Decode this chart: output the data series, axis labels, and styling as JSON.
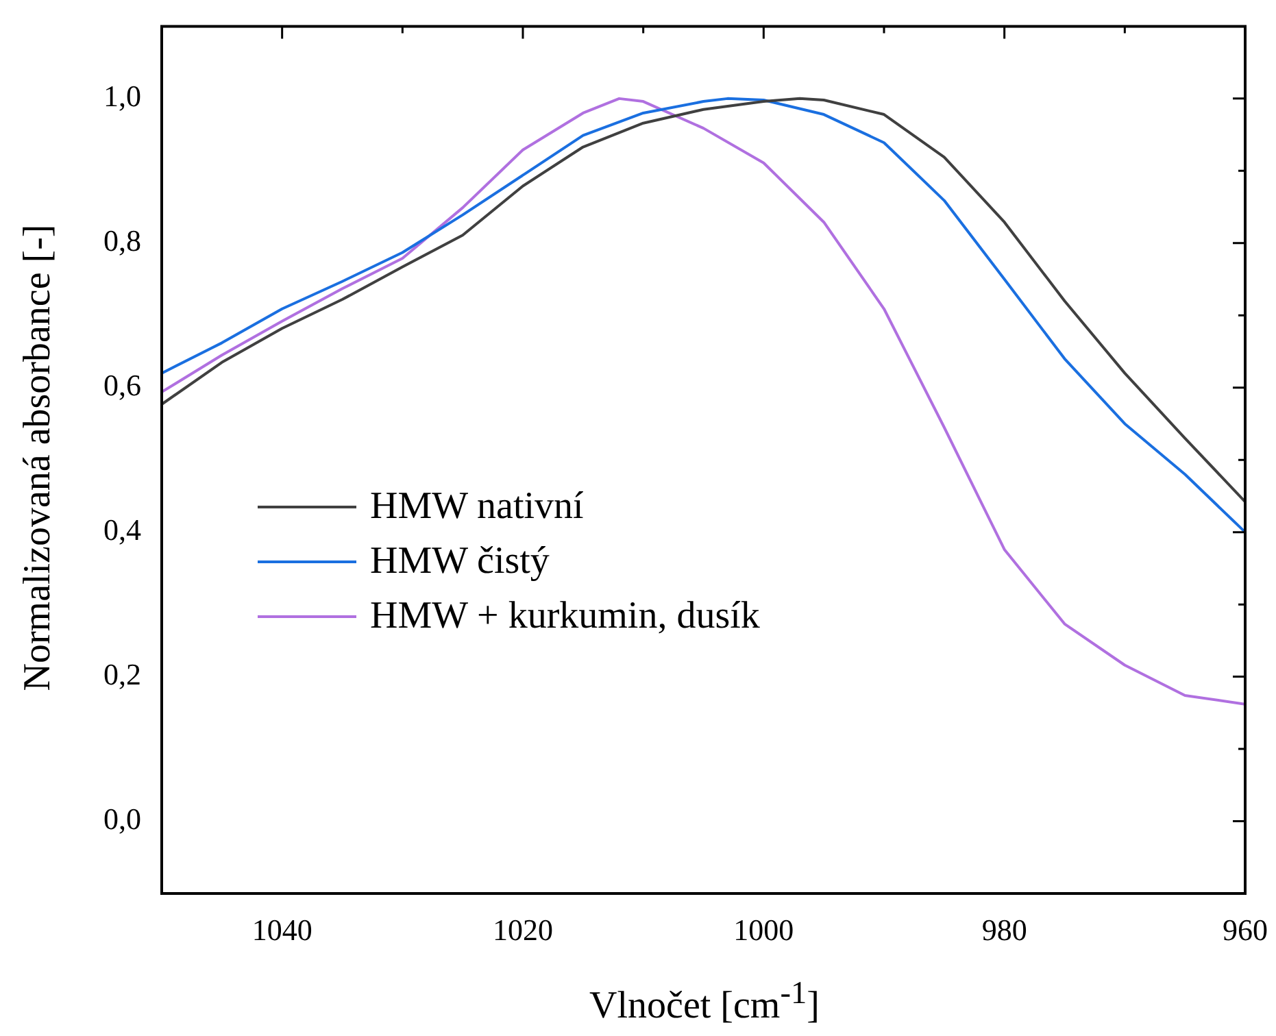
{
  "chart_data": {
    "type": "line",
    "xlabel": "Vlnočet [cm$^{-1}$]",
    "ylabel": "Normalizovaná absorbance [-]",
    "xlim": [
      1050,
      960
    ],
    "ylim": [
      -0.1,
      1.1
    ],
    "xticks": [
      {
        "value": 1050,
        "label": null
      },
      1040,
      {
        "value": 1030,
        "label": null
      },
      1020,
      {
        "value": 1010,
        "label": null
      },
      1000,
      {
        "value": 990,
        "label": null
      },
      980,
      {
        "value": 970,
        "label": null
      },
      960
    ],
    "yticks": [
      {
        "value": -0.1,
        "label": null
      },
      {
        "value": 0,
        "label": "0,0"
      },
      {
        "value": 0.1,
        "label": null
      },
      {
        "value": 0.2,
        "label": "0,2"
      },
      {
        "value": 0.3,
        "label": null
      },
      {
        "value": 0.4,
        "label": "0,4"
      },
      {
        "value": 0.5,
        "label": null
      },
      {
        "value": 0.6,
        "label": "0,6"
      },
      {
        "value": 0.7,
        "label": null
      },
      {
        "value": 0.8,
        "label": "0,8"
      },
      {
        "value": 0.9,
        "label": null
      },
      {
        "value": 1,
        "label": "1,0"
      },
      {
        "value": 1.1,
        "label": null
      }
    ],
    "x": [
      1050,
      1045,
      1040,
      1035,
      1030,
      1025,
      1020,
      1015,
      1010,
      1005,
      1000,
      997,
      995,
      990,
      985,
      980,
      975,
      970,
      965,
      960
    ],
    "series": [
      {
        "name": "HMW nativní",
        "color": "#404040",
        "values": [
          0.577,
          0.635,
          0.682,
          0.722,
          0.767,
          0.811,
          0.879,
          0.933,
          0.966,
          0.985,
          0.996,
          1.0,
          0.998,
          0.978,
          0.919,
          0.829,
          0.72,
          0.62,
          0.53,
          0.442
        ]
      },
      {
        "name": "HMW čistý",
        "color": "#1a6fe0",
        "x": [
          1050,
          1045,
          1040,
          1035,
          1030,
          1025,
          1020,
          1015,
          1010,
          1005,
          1003,
          1000,
          995,
          990,
          985,
          980,
          975,
          970,
          965,
          960
        ],
        "values": [
          0.62,
          0.662,
          0.709,
          0.747,
          0.787,
          0.839,
          0.894,
          0.949,
          0.98,
          0.996,
          1.0,
          0.998,
          0.978,
          0.939,
          0.859,
          0.75,
          0.64,
          0.55,
          0.48,
          0.4
        ]
      },
      {
        "name": "HMW + kurkumin, dusík",
        "color": "#b070e0",
        "x": [
          1050,
          1045,
          1040,
          1035,
          1030,
          1025,
          1020,
          1015,
          1012,
          1010,
          1005,
          1000,
          995,
          990,
          985,
          980,
          975,
          970,
          965,
          960
        ],
        "values": [
          0.594,
          0.645,
          0.692,
          0.737,
          0.779,
          0.849,
          0.929,
          0.98,
          1.0,
          0.996,
          0.959,
          0.911,
          0.829,
          0.709,
          0.545,
          0.376,
          0.273,
          0.216,
          0.174,
          0.162
        ]
      }
    ],
    "legend": "left",
    "grid": false,
    "marker": "none",
    "line_style": "solid"
  }
}
